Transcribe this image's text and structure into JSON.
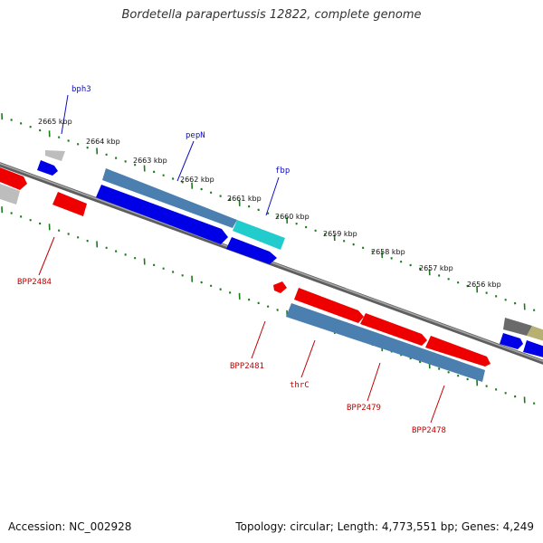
{
  "title": "Bordetella parapertussis 12822, complete genome",
  "footer": {
    "accession": "Accession: NC_002928",
    "summary": "Topology: circular; Length: 4,773,551 bp; Genes: 4,249"
  },
  "ticks": [
    "2665 kbp",
    "2664 kbp",
    "2663 kbp",
    "2662 kbp",
    "2661 kbp",
    "2660 kbp",
    "2659 kbp",
    "2658 kbp",
    "2657 kbp",
    "2656 kbp"
  ],
  "gene_labels": {
    "bph3": "bph3",
    "pepN": "pepN",
    "fbp": "fbp",
    "BPP2484": "BPP2484",
    "BPP2481": "BPP2481",
    "thrC": "thrC",
    "BPP2479": "BPP2479",
    "BPP2478": "BPP2478"
  },
  "colors": {
    "backbone": "#7a7a7a",
    "tick_green": "#1a7a1a",
    "blue_gene": "#0000e6",
    "red_gene": "#ee0000",
    "steel_gene": "#4a7fb0",
    "cyan_gene": "#22cccc",
    "grey_gene": "#9a9a9a",
    "dark_grey_gene": "#6a6a6a",
    "olive_gene": "#b8b070"
  }
}
